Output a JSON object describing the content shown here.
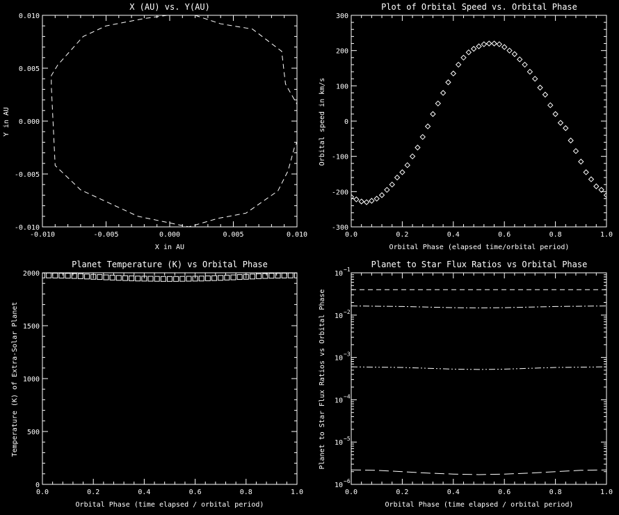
{
  "colors": {
    "background": "#000000",
    "foreground": "#ffffff"
  },
  "chart_data": [
    {
      "type": "line",
      "title": "X (AU)  vs.  Y(AU)",
      "xlabel": "X in AU",
      "ylabel": "Y in AU",
      "xlim": [
        -0.01,
        0.01
      ],
      "ylim": [
        -0.01,
        0.01
      ],
      "xticks": [
        "-0.010",
        "-0.005",
        "0.000",
        "0.005",
        "0.010"
      ],
      "yticks": [
        "-0.010",
        "-0.005",
        "0.000",
        "0.005",
        "0.010"
      ],
      "xtick_values": [
        -0.01,
        -0.005,
        0.0,
        0.005,
        0.01
      ],
      "ytick_values": [
        -0.01,
        -0.005,
        0.0,
        0.005,
        0.01
      ],
      "line_style": "dashed",
      "series": [
        {
          "x": [
            -0.0002,
            -0.002,
            -0.005,
            -0.0068,
            -0.0088,
            -0.0093,
            -0.0093,
            -0.009,
            -0.007,
            -0.0025,
            0.0015,
            0.0038,
            0.006,
            0.0085,
            0.0093,
            0.0098,
            0.01
          ],
          "y": [
            0.01,
            0.0097,
            0.009,
            0.008,
            0.0053,
            0.0043,
            0.0033,
            -0.0042,
            -0.0065,
            -0.009,
            -0.01,
            -0.0092,
            -0.0087,
            -0.0066,
            -0.0047,
            -0.0025,
            -0.002
          ]
        },
        {
          "x": [
            0.002,
            0.004,
            0.0065,
            0.0088,
            0.0091,
            0.01
          ],
          "y": [
            0.01,
            0.0092,
            0.0087,
            0.0066,
            0.0035,
            0.0016
          ]
        }
      ]
    },
    {
      "type": "scatter",
      "title": "Plot of Orbital Speed  vs.  Orbital Phase",
      "xlabel": "Orbital Phase (elapsed time/orbital period)",
      "ylabel": "Orbital speed in km/s",
      "xlim": [
        0.0,
        1.0
      ],
      "ylim": [
        -300,
        300
      ],
      "xticks": [
        "0.0",
        "0.2",
        "0.4",
        "0.6",
        "0.8",
        "1.0"
      ],
      "yticks": [
        "-300",
        "-200",
        "-100",
        "0",
        "100",
        "200",
        "300"
      ],
      "xtick_values": [
        0.0,
        0.2,
        0.4,
        0.6,
        0.8,
        1.0
      ],
      "ytick_values": [
        -300,
        -200,
        -100,
        0,
        100,
        200,
        300
      ],
      "marker": "diamond",
      "series": [
        {
          "x": [
            0.0,
            0.02,
            0.04,
            0.06,
            0.08,
            0.1,
            0.12,
            0.14,
            0.16,
            0.18,
            0.2,
            0.22,
            0.24,
            0.26,
            0.28,
            0.3,
            0.32,
            0.34,
            0.36,
            0.38,
            0.4,
            0.42,
            0.44,
            0.46,
            0.48,
            0.5,
            0.52,
            0.54,
            0.56,
            0.58,
            0.6,
            0.62,
            0.64,
            0.66,
            0.68,
            0.7,
            0.72,
            0.74,
            0.76,
            0.78,
            0.8,
            0.82,
            0.84,
            0.86,
            0.88,
            0.9,
            0.92,
            0.94,
            0.96,
            0.98,
            1.0
          ],
          "y": [
            -215,
            -222,
            -228,
            -230,
            -226,
            -220,
            -210,
            -195,
            -180,
            -160,
            -145,
            -125,
            -100,
            -75,
            -45,
            -15,
            20,
            50,
            80,
            110,
            135,
            160,
            180,
            195,
            205,
            212,
            218,
            220,
            220,
            218,
            210,
            200,
            190,
            175,
            160,
            140,
            120,
            95,
            75,
            45,
            20,
            -5,
            -20,
            -55,
            -85,
            -115,
            -145,
            -165,
            -185,
            -195,
            -210
          ]
        }
      ]
    },
    {
      "type": "scatter",
      "title": "Planet Temperature (K) vs Orbital Phase",
      "xlabel": "Orbital Phase (time elapsed / orbital period)",
      "ylabel": "Temperature (K) of Extra-Solar Planet",
      "xlim": [
        0.0,
        1.0
      ],
      "ylim": [
        0,
        2000
      ],
      "xticks": [
        "0.0",
        "0.2",
        "0.4",
        "0.6",
        "0.8",
        "1.0"
      ],
      "yticks": [
        "0",
        "500",
        "1000",
        "1500",
        "2000"
      ],
      "xtick_values": [
        0.0,
        0.2,
        0.4,
        0.6,
        0.8,
        1.0
      ],
      "ytick_values": [
        0,
        500,
        1000,
        1500,
        2000
      ],
      "marker": "square",
      "series": [
        {
          "x": [
            0.0,
            0.025,
            0.05,
            0.075,
            0.1,
            0.125,
            0.15,
            0.175,
            0.2,
            0.225,
            0.25,
            0.275,
            0.3,
            0.325,
            0.35,
            0.375,
            0.4,
            0.425,
            0.45,
            0.475,
            0.5,
            0.525,
            0.55,
            0.575,
            0.6,
            0.625,
            0.65,
            0.675,
            0.7,
            0.725,
            0.75,
            0.775,
            0.8,
            0.825,
            0.85,
            0.875,
            0.9,
            0.925,
            0.95,
            0.975,
            1.0
          ],
          "y": [
            1975,
            1975,
            1974,
            1973,
            1972,
            1970,
            1968,
            1965,
            1962,
            1960,
            1957,
            1955,
            1952,
            1950,
            1948,
            1946,
            1945,
            1944,
            1943,
            1942,
            1942,
            1942,
            1943,
            1944,
            1945,
            1946,
            1948,
            1950,
            1952,
            1955,
            1957,
            1960,
            1962,
            1965,
            1968,
            1970,
            1972,
            1973,
            1974,
            1975,
            1975
          ]
        }
      ]
    },
    {
      "type": "line",
      "title": "Planet to Star Flux Ratios vs Orbital Phase",
      "xlabel": "Orbital Phase (time elapsed / orbital period)",
      "ylabel": "Planet to Star Flux Ratios vs Orbital Phase",
      "xlim": [
        0.0,
        1.0
      ],
      "ylim": [
        1e-06,
        0.1
      ],
      "yscale": "log",
      "xticks": [
        "0.0",
        "0.2",
        "0.4",
        "0.6",
        "0.8",
        "1.0"
      ],
      "xtick_values": [
        0.0,
        0.2,
        0.4,
        0.6,
        0.8,
        1.0
      ],
      "ytick_exponents": [
        -6,
        -5,
        -4,
        -3,
        -2,
        -1
      ],
      "ytick_base": "10",
      "series": [
        {
          "style": "dashed",
          "x": [
            0.0,
            0.2,
            0.4,
            0.5,
            0.6,
            0.8,
            1.0
          ],
          "y": [
            0.04,
            0.04,
            0.04,
            0.04,
            0.04,
            0.04,
            0.04
          ]
        },
        {
          "style": "dash-dot",
          "x": [
            0.0,
            0.2,
            0.4,
            0.5,
            0.6,
            0.8,
            1.0
          ],
          "y": [
            0.0165,
            0.016,
            0.015,
            0.0148,
            0.015,
            0.016,
            0.0165
          ]
        },
        {
          "style": "dash-dot-dot",
          "x": [
            0.0,
            0.2,
            0.4,
            0.5,
            0.6,
            0.8,
            1.0
          ],
          "y": [
            0.0006,
            0.00058,
            0.00053,
            0.00052,
            0.00053,
            0.00058,
            0.0006
          ]
        },
        {
          "style": "long-dash",
          "x": [
            0.0,
            0.1,
            0.2,
            0.3,
            0.4,
            0.5,
            0.6,
            0.7,
            0.8,
            0.9,
            1.0
          ],
          "y": [
            2.2e-06,
            2.15e-06,
            2e-06,
            1.85e-06,
            1.75e-06,
            1.7e-06,
            1.75e-06,
            1.85e-06,
            2e-06,
            2.15e-06,
            2.2e-06
          ]
        }
      ]
    }
  ]
}
